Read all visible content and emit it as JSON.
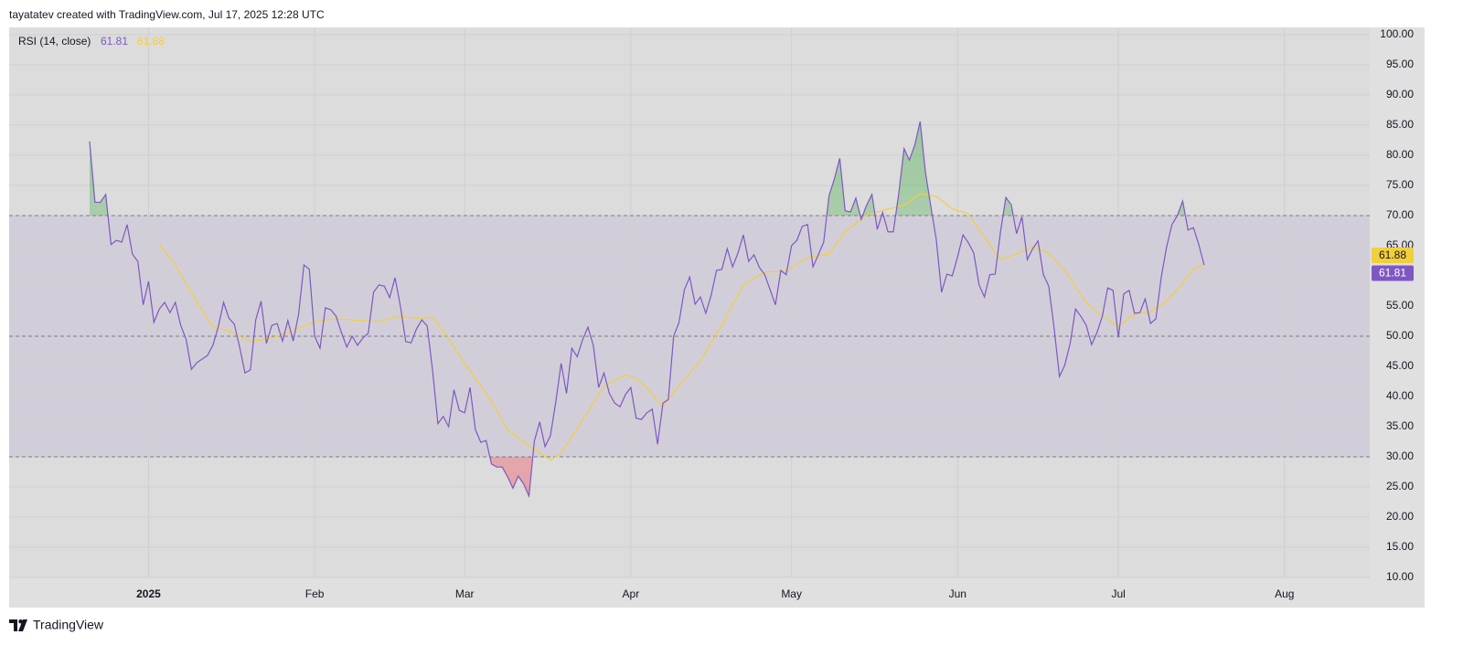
{
  "header": "tayatatev created with TradingView.com, Jul 17, 2025 12:28 UTC",
  "footer": "TradingView",
  "chart_data": {
    "type": "line",
    "indicator_label": "RSI (14, close)",
    "categories": [
      null,
      null,
      null,
      null,
      null,
      null,
      null,
      null,
      null,
      null,
      null,
      "2025",
      null,
      null,
      null,
      null,
      null,
      null,
      null,
      null,
      null,
      null,
      null,
      null,
      null,
      null,
      null,
      null,
      null,
      null,
      null,
      null,
      null,
      null,
      null,
      null,
      null,
      null,
      null,
      null,
      null,
      null,
      "Feb",
      null,
      null,
      null,
      null,
      null,
      null,
      null,
      null,
      null,
      null,
      null,
      null,
      null,
      null,
      null,
      null,
      null,
      null,
      null,
      null,
      null,
      null,
      null,
      null,
      null,
      null,
      null,
      "Mar",
      null,
      null,
      null,
      null,
      null,
      null,
      null,
      null,
      null,
      null,
      null,
      null,
      null,
      null,
      null,
      null,
      null,
      null,
      null,
      null,
      null,
      null,
      null,
      null,
      null,
      null,
      null,
      null,
      null,
      null,
      "Apr",
      null,
      null,
      null,
      null,
      null,
      null,
      null,
      null,
      null,
      null,
      null,
      null,
      null,
      null,
      null,
      null,
      null,
      null,
      null,
      null,
      null,
      null,
      null,
      null,
      null,
      null,
      null,
      null,
      null,
      "May",
      null,
      null,
      null,
      null,
      null,
      null,
      null,
      null,
      null,
      null,
      null,
      null,
      null,
      null,
      null,
      null,
      null,
      null,
      null,
      null,
      null,
      null,
      null,
      null,
      null,
      null,
      null,
      null,
      null,
      null,
      "Jun",
      null,
      null,
      null,
      null,
      null,
      null,
      null,
      null,
      null,
      null,
      null,
      null,
      null,
      null,
      null,
      null,
      null,
      null,
      null,
      null,
      null,
      null,
      null,
      null,
      null,
      null,
      null,
      null,
      null,
      "Jul",
      null,
      null,
      null,
      null,
      null,
      null,
      null,
      null,
      null,
      null,
      null,
      null,
      null,
      null,
      null,
      null,
      null,
      null,
      null,
      null,
      null,
      null,
      null,
      null,
      null,
      null,
      null,
      null,
      null,
      null,
      "Aug"
    ],
    "series": [
      {
        "color": "#7e57c2",
        "values": [
          82.3,
          72.2,
          72.2,
          73.5,
          65.2,
          65.9,
          65.6,
          68.5,
          63.6,
          62.4,
          55.2,
          59.1,
          52.3,
          54.5,
          55.6,
          53.9,
          55.6,
          51.8,
          49.5,
          44.5,
          45.6,
          46.2,
          46.8,
          48.5,
          51.5,
          55.6,
          53.0,
          52.0,
          48.2,
          43.9,
          44.4,
          52.7,
          55.8,
          48.8,
          51.8,
          52.1,
          49.2,
          52.6,
          49.2,
          53.6,
          61.8,
          61.1,
          50.0,
          48.0,
          54.7,
          54.4,
          53.3,
          50.6,
          48.2,
          50.0,
          48.5,
          49.7,
          50.5,
          57.3,
          58.5,
          58.3,
          56.4,
          59.7,
          55.0,
          49.1,
          48.9,
          51.2,
          52.7,
          51.7,
          44.4,
          35.5,
          36.7,
          35.0,
          41.1,
          37.7,
          37.3,
          41.5,
          34.5,
          32.4,
          32.7,
          28.8,
          28.3,
          28.3,
          26.7,
          24.8,
          26.8,
          25.5,
          23.5,
          32.6,
          35.8,
          31.7,
          33.5,
          39.1,
          45.5,
          40.5,
          48.0,
          46.6,
          49.4,
          51.5,
          48.5,
          41.5,
          43.9,
          40.5,
          38.9,
          38.3,
          40.3,
          41.5,
          36.4,
          36.2,
          37.3,
          37.9,
          32.1,
          38.9,
          39.5,
          50.0,
          52.3,
          57.7,
          59.8,
          55.3,
          56.5,
          53.8,
          56.8,
          60.9,
          61.1,
          64.5,
          61.5,
          63.8,
          66.8,
          62.4,
          63.5,
          61.4,
          60.2,
          57.7,
          55.2,
          60.9,
          60.2,
          65.0,
          65.9,
          68.2,
          68.5,
          61.5,
          63.5,
          65.6,
          73.3,
          76.1,
          79.5,
          70.8,
          70.6,
          72.9,
          69.4,
          71.7,
          73.5,
          67.7,
          70.5,
          67.3,
          67.3,
          73.6,
          81.1,
          79.2,
          81.7,
          85.6,
          77.1,
          71.5,
          66.1,
          57.3,
          60.3,
          60.0,
          63.2,
          66.8,
          65.5,
          63.8,
          58.5,
          56.5,
          60.2,
          60.3,
          67.3,
          73.0,
          71.8,
          67.0,
          69.8,
          62.7,
          64.5,
          65.8,
          60.2,
          58.3,
          51.4,
          43.3,
          45.2,
          48.8,
          54.5,
          53.3,
          51.8,
          48.6,
          50.6,
          53.3,
          58.0,
          57.6,
          49.8,
          57.0,
          57.6,
          53.8,
          53.9,
          56.2,
          52.1,
          52.9,
          59.8,
          64.8,
          68.5,
          70.0,
          72.4,
          67.6,
          68.0,
          65.2,
          61.81,
          null,
          null,
          null,
          null,
          null,
          null,
          null,
          null,
          null,
          null,
          null,
          null,
          null,
          null,
          null
        ]
      },
      {
        "color": "#f2cf3c",
        "values": [
          null,
          null,
          null,
          null,
          null,
          null,
          null,
          null,
          null,
          null,
          null,
          null,
          null,
          65.2,
          64.1,
          63.0,
          61.8,
          60.3,
          58.8,
          57.3,
          55.8,
          54.4,
          52.9,
          51.5,
          51.3,
          51.1,
          50.9,
          50.5,
          50.0,
          49.6,
          49.1,
          49.3,
          49.4,
          49.6,
          49.7,
          50.0,
          50.3,
          50.6,
          50.9,
          51.3,
          51.6,
          52.0,
          52.4,
          52.5,
          52.7,
          52.8,
          52.9,
          52.8,
          52.8,
          52.7,
          52.6,
          52.6,
          52.5,
          52.5,
          52.4,
          52.6,
          52.9,
          53.1,
          53.3,
          53.2,
          53.1,
          53.0,
          52.9,
          53.1,
          53.2,
          52.0,
          50.9,
          49.5,
          48.2,
          46.8,
          45.5,
          44.3,
          43.0,
          41.8,
          40.6,
          39.1,
          37.6,
          36.0,
          34.5,
          33.8,
          33.2,
          32.5,
          31.8,
          31.2,
          30.7,
          30.1,
          29.5,
          30.0,
          30.6,
          32.0,
          33.3,
          34.7,
          36.1,
          37.5,
          38.9,
          40.3,
          41.7,
          42.2,
          42.7,
          43.1,
          43.6,
          43.3,
          43.0,
          42.2,
          41.4,
          40.4,
          39.3,
          38.3,
          39.5,
          40.6,
          41.8,
          42.8,
          43.9,
          44.9,
          45.9,
          47.4,
          48.9,
          50.3,
          51.8,
          53.5,
          55.2,
          56.8,
          58.5,
          59.0,
          59.6,
          60.1,
          60.6,
          60.7,
          60.7,
          60.8,
          60.8,
          61.4,
          61.9,
          62.5,
          63.0,
          63.2,
          63.3,
          63.5,
          63.6,
          64.8,
          66.1,
          67.3,
          68.0,
          68.7,
          69.3,
          70.0,
          70.3,
          70.6,
          70.8,
          71.1,
          71.3,
          71.5,
          71.7,
          72.3,
          73.0,
          73.6,
          73.5,
          73.3,
          73.2,
          72.5,
          71.8,
          71.1,
          70.8,
          70.6,
          70.3,
          69.0,
          67.7,
          66.4,
          65.2,
          63.9,
          62.7,
          63.0,
          63.3,
          63.6,
          64.0,
          64.4,
          64.8,
          64.5,
          64.1,
          63.8,
          62.8,
          61.9,
          60.9,
          59.6,
          58.2,
          56.9,
          55.6,
          54.8,
          54.1,
          53.3,
          52.8,
          52.2,
          51.7,
          52.3,
          53.0,
          53.6,
          53.8,
          53.9,
          54.1,
          54.7,
          55.2,
          55.8,
          56.8,
          57.8,
          58.8,
          60.0,
          61.1,
          61.5,
          61.88,
          null,
          null,
          null,
          null,
          null,
          null,
          null,
          null,
          null,
          null,
          null,
          null,
          null,
          null,
          null
        ]
      }
    ],
    "ylim": [
      10,
      101.2
    ],
    "yticks": [
      {
        "value": 100,
        "label": "100.00"
      },
      {
        "value": 95,
        "label": "95.00"
      },
      {
        "value": 90,
        "label": "90.00"
      },
      {
        "value": 85,
        "label": "85.00"
      },
      {
        "value": 80,
        "label": "80.00"
      },
      {
        "value": 75,
        "label": "75.00"
      },
      {
        "value": 70,
        "label": "70.00"
      },
      {
        "value": 65,
        "label": "65.00"
      },
      {
        "value": 60,
        "label": "60.00"
      },
      {
        "value": 55,
        "label": "55.00"
      },
      {
        "value": 50,
        "label": "50.00"
      },
      {
        "value": 45,
        "label": "45.00"
      },
      {
        "value": 40,
        "label": "40.00"
      },
      {
        "value": 35,
        "label": "35.00"
      },
      {
        "value": 30,
        "label": "30.00"
      },
      {
        "value": 25,
        "label": "25.00"
      },
      {
        "value": 20,
        "label": "20.00"
      },
      {
        "value": 15,
        "label": "15.00"
      },
      {
        "value": 10,
        "label": "10.00"
      }
    ],
    "levels": {
      "upper": 70,
      "middle": 50,
      "lower": 30
    },
    "grid": true
  }
}
